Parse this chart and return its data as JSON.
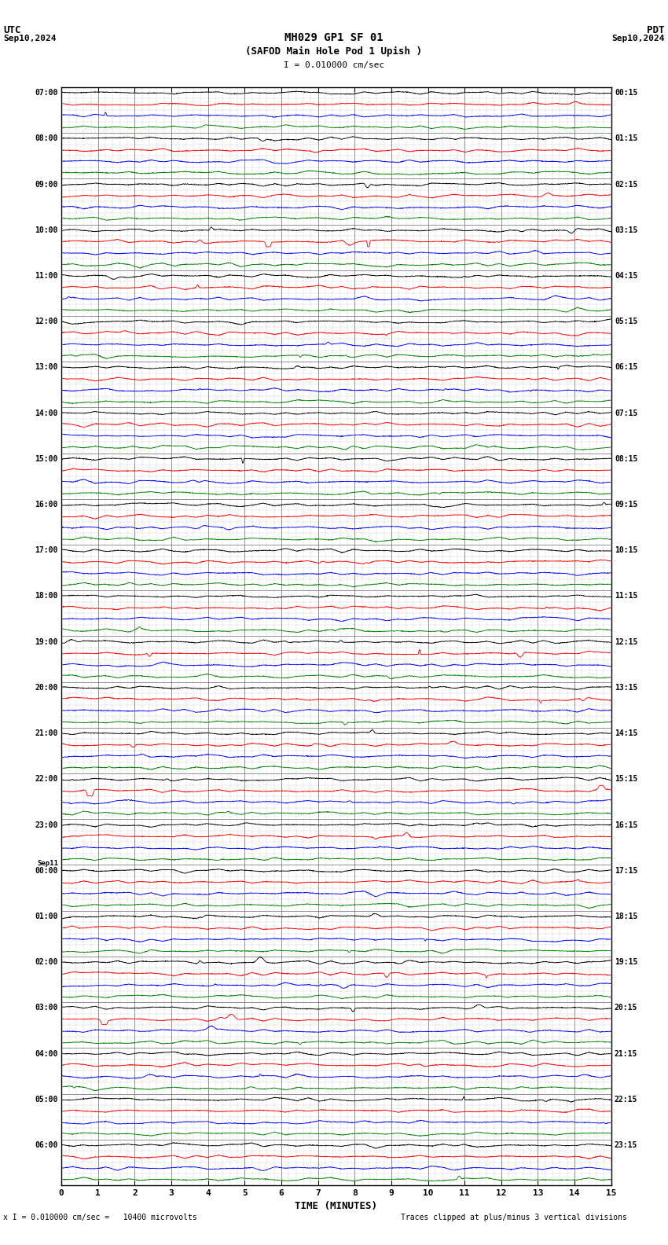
{
  "title_line1": "MH029 GP1 SF 01",
  "title_line2": "(SAFOD Main Hole Pod 1 Upish )",
  "scale_label": "I = 0.010000 cm/sec",
  "utc_label": "UTC",
  "pdt_label": "PDT",
  "date_left": "Sep10,2024",
  "date_right": "Sep10,2024",
  "xlabel": "TIME (MINUTES)",
  "footer_left": "x I = 0.010000 cm/sec =   10400 microvolts",
  "footer_right": "Traces clipped at plus/minus 3 vertical divisions",
  "x_min": 0,
  "x_max": 15,
  "x_ticks": [
    0,
    1,
    2,
    3,
    4,
    5,
    6,
    7,
    8,
    9,
    10,
    11,
    12,
    13,
    14,
    15
  ],
  "background_color": "#ffffff",
  "trace_colors": [
    "#000000",
    "#ff0000",
    "#0000ff",
    "#008000"
  ],
  "n_hours": 24,
  "left_times": [
    "07:00",
    "08:00",
    "09:00",
    "10:00",
    "11:00",
    "12:00",
    "13:00",
    "14:00",
    "15:00",
    "16:00",
    "17:00",
    "18:00",
    "19:00",
    "20:00",
    "21:00",
    "22:00",
    "23:00",
    "Sep11\n00:00",
    "01:00",
    "02:00",
    "03:00",
    "04:00",
    "05:00",
    "06:00"
  ],
  "right_times": [
    "00:15",
    "01:15",
    "02:15",
    "03:15",
    "04:15",
    "05:15",
    "06:15",
    "07:15",
    "08:15",
    "09:15",
    "10:15",
    "11:15",
    "12:15",
    "13:15",
    "14:15",
    "15:15",
    "16:15",
    "17:15",
    "18:15",
    "19:15",
    "20:15",
    "21:15",
    "22:15",
    "23:15"
  ],
  "grid_color": "#666666",
  "minor_grid_color": "#bbbbbb",
  "trace_linewidth": 0.6
}
